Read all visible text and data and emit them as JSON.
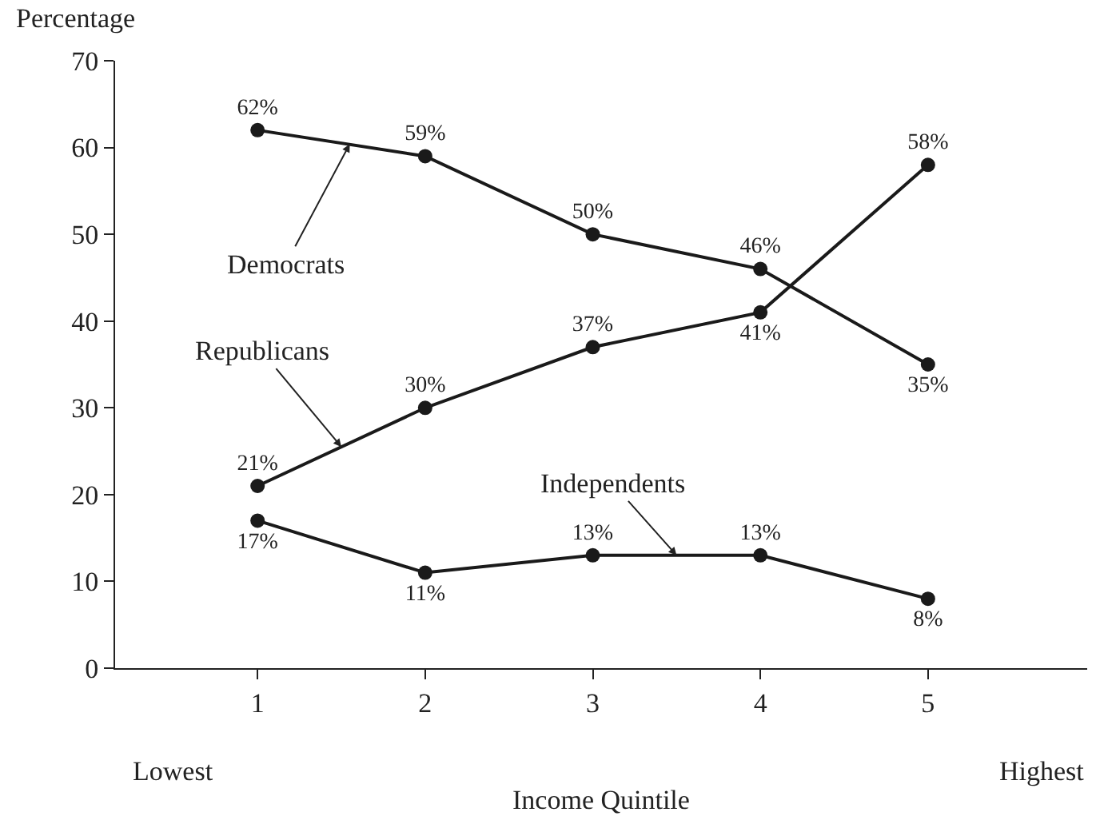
{
  "chart_data": {
    "type": "line",
    "ylabel": "Percentage",
    "xlabel": "Income Quintile",
    "x": [
      1,
      2,
      3,
      4,
      5
    ],
    "xlim": [
      0.15,
      5.95
    ],
    "xticks": [
      1,
      2,
      3,
      4,
      5
    ],
    "ylim": [
      0,
      70
    ],
    "yticks": [
      0,
      10,
      20,
      30,
      40,
      50,
      60,
      70
    ],
    "series": [
      {
        "color": "#1a1a1a",
        "values": [
          62,
          59,
          50,
          46,
          35
        ],
        "value_labels": [
          "62%",
          "59%",
          "50%",
          "46%",
          "35%"
        ]
      },
      {
        "color": "#1a1a1a",
        "values": [
          21,
          30,
          37,
          41,
          58
        ],
        "value_labels": [
          "21%",
          "30%",
          "37%",
          "41%",
          "58%"
        ]
      },
      {
        "color": "#1a1a1a",
        "values": [
          17,
          11,
          13,
          13,
          8
        ],
        "value_labels": [
          "17%",
          "11%",
          "13%",
          "13%",
          "8%"
        ]
      }
    ],
    "annotations": [
      {
        "text": "Democrats",
        "x": 1.55,
        "y": 60.4
      },
      {
        "text": "Republicans",
        "x": 1.5,
        "y": 25.5
      },
      {
        "text": "Independents",
        "x": 3.5,
        "y": 13
      },
      "Lowest",
      "Highest"
    ],
    "marker": "circle",
    "line_style": "solid"
  }
}
